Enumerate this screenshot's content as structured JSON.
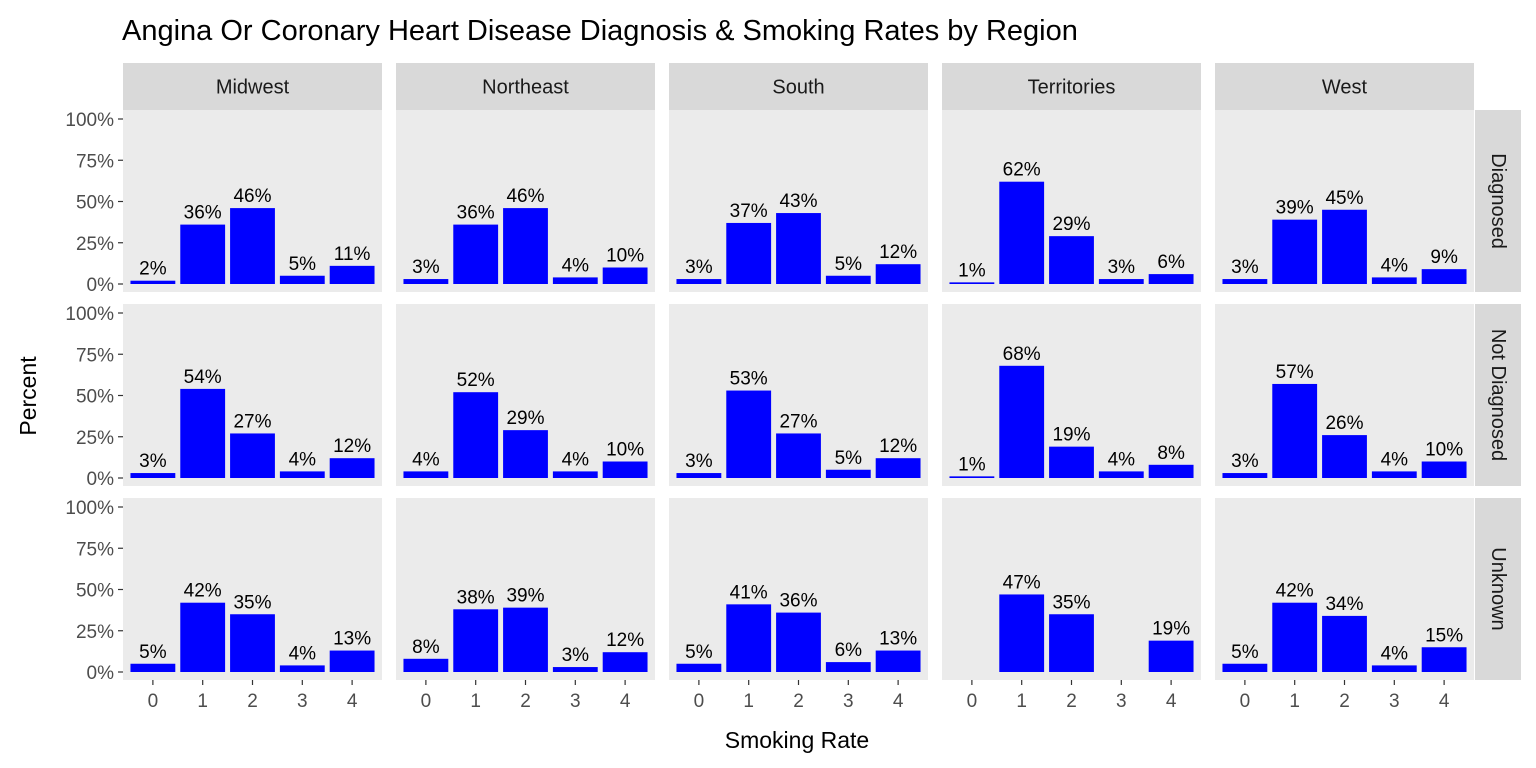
{
  "chart_data": {
    "type": "bar",
    "title": "Angina Or Coronary Heart Disease Diagnosis & Smoking Rates by Region",
    "xlabel": "Smoking Rate",
    "ylabel": "Percent",
    "categories": [
      "0",
      "1",
      "2",
      "3",
      "4"
    ],
    "ylim": [
      0,
      100
    ],
    "y_ticks": [
      "0%",
      "25%",
      "50%",
      "75%",
      "100%"
    ],
    "y_tick_values": [
      0,
      25,
      50,
      75,
      100
    ],
    "columns": [
      "Midwest",
      "Northeast",
      "South",
      "Territories",
      "West"
    ],
    "rows": [
      "Diagnosed",
      "Not Diagnosed",
      "Unknown"
    ],
    "bar_color": "#0000ff",
    "panel_background": "#ebebeb",
    "strip_background": "#d9d9d9",
    "grid": false,
    "panels": [
      {
        "row": "Diagnosed",
        "column": "Midwest",
        "values": [
          2,
          36,
          46,
          5,
          11
        ],
        "labels": [
          "2%",
          "36%",
          "46%",
          "5%",
          "11%"
        ]
      },
      {
        "row": "Diagnosed",
        "column": "Northeast",
        "values": [
          3,
          36,
          46,
          4,
          10
        ],
        "labels": [
          "3%",
          "36%",
          "46%",
          "4%",
          "10%"
        ]
      },
      {
        "row": "Diagnosed",
        "column": "South",
        "values": [
          3,
          37,
          43,
          5,
          12
        ],
        "labels": [
          "3%",
          "37%",
          "43%",
          "5%",
          "12%"
        ]
      },
      {
        "row": "Diagnosed",
        "column": "Territories",
        "values": [
          1,
          62,
          29,
          3,
          6
        ],
        "labels": [
          "1%",
          "62%",
          "29%",
          "3%",
          "6%"
        ]
      },
      {
        "row": "Diagnosed",
        "column": "West",
        "values": [
          3,
          39,
          45,
          4,
          9
        ],
        "labels": [
          "3%",
          "39%",
          "45%",
          "4%",
          "9%"
        ]
      },
      {
        "row": "Not Diagnosed",
        "column": "Midwest",
        "values": [
          3,
          54,
          27,
          4,
          12
        ],
        "labels": [
          "3%",
          "54%",
          "27%",
          "4%",
          "12%"
        ]
      },
      {
        "row": "Not Diagnosed",
        "column": "Northeast",
        "values": [
          4,
          52,
          29,
          4,
          10
        ],
        "labels": [
          "4%",
          "52%",
          "29%",
          "4%",
          "10%"
        ]
      },
      {
        "row": "Not Diagnosed",
        "column": "South",
        "values": [
          3,
          53,
          27,
          5,
          12
        ],
        "labels": [
          "3%",
          "53%",
          "27%",
          "5%",
          "12%"
        ]
      },
      {
        "row": "Not Diagnosed",
        "column": "Territories",
        "values": [
          1,
          68,
          19,
          4,
          8
        ],
        "labels": [
          "1%",
          "68%",
          "19%",
          "4%",
          "8%"
        ]
      },
      {
        "row": "Not Diagnosed",
        "column": "West",
        "values": [
          3,
          57,
          26,
          4,
          10
        ],
        "labels": [
          "3%",
          "57%",
          "26%",
          "4%",
          "10%"
        ]
      },
      {
        "row": "Unknown",
        "column": "Midwest",
        "values": [
          5,
          42,
          35,
          4,
          13
        ],
        "labels": [
          "5%",
          "42%",
          "35%",
          "4%",
          "13%"
        ]
      },
      {
        "row": "Unknown",
        "column": "Northeast",
        "values": [
          8,
          38,
          39,
          3,
          12
        ],
        "labels": [
          "8%",
          "38%",
          "39%",
          "3%",
          "12%"
        ]
      },
      {
        "row": "Unknown",
        "column": "South",
        "values": [
          5,
          41,
          36,
          6,
          13
        ],
        "labels": [
          "5%",
          "41%",
          "36%",
          "6%",
          "13%"
        ]
      },
      {
        "row": "Unknown",
        "column": "Territories",
        "values": [
          null,
          47,
          35,
          null,
          19
        ],
        "labels": [
          "",
          "47%",
          "35%",
          "",
          "19%"
        ]
      },
      {
        "row": "Unknown",
        "column": "West",
        "values": [
          5,
          42,
          34,
          4,
          15
        ],
        "labels": [
          "5%",
          "42%",
          "34%",
          "4%",
          "15%"
        ]
      }
    ]
  }
}
